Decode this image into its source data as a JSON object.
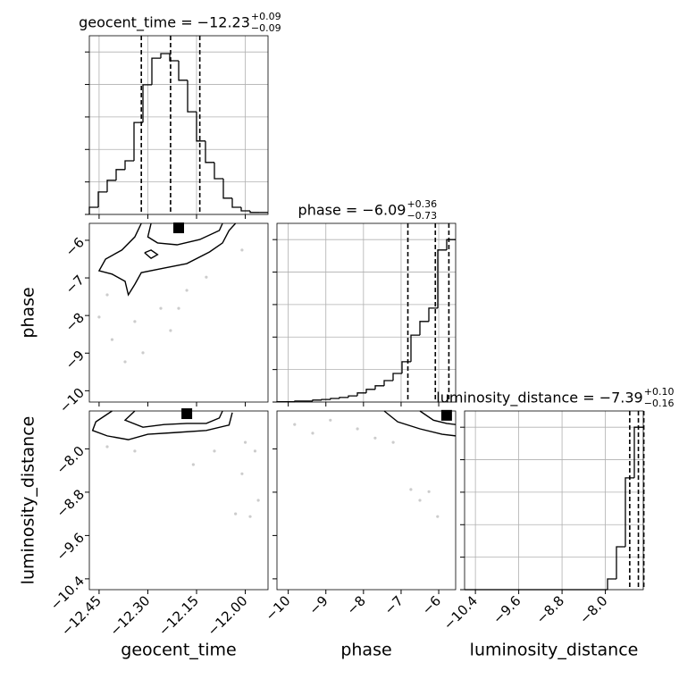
{
  "chart_data": {
    "type": "corner",
    "color": "#000000",
    "grid": true,
    "hist_ylim": [
      0,
      550
    ],
    "hist_yticks": [
      0,
      100,
      200,
      300,
      400,
      500
    ],
    "parameters": [
      {
        "name": "geocent_time",
        "title": "geocent_time = −12.23",
        "upper": "+0.09",
        "lower": "−0.09",
        "lim": [
          -12.48,
          -11.93
        ],
        "ticks": [
          {
            "value": -12.45,
            "label": "−12.45"
          },
          {
            "value": -12.3,
            "label": "−12.30"
          },
          {
            "value": -12.15,
            "label": "−12.15"
          },
          {
            "value": -12.0,
            "label": "−12.00"
          }
        ],
        "quantiles": [
          -12.32,
          -12.23,
          -12.14
        ],
        "bins": [
          -12.48,
          -12.4525,
          -12.425,
          -12.3975,
          -12.37,
          -12.3425,
          -12.315,
          -12.2875,
          -12.26,
          -12.2325,
          -12.205,
          -12.1775,
          -12.15,
          -12.1225,
          -12.095,
          -12.0675,
          -12.04,
          -12.0125,
          -11.985,
          -11.9575,
          -11.93
        ],
        "counts": [
          22,
          69,
          105,
          138,
          165,
          283,
          399,
          481,
          495,
          473,
          413,
          316,
          226,
          160,
          110,
          50,
          22,
          11,
          6,
          6
        ]
      },
      {
        "name": "phase",
        "title": "phase = −6.09",
        "upper": "+0.36",
        "lower": "−0.73",
        "lim": [
          -10.3,
          -5.55
        ],
        "ticks": [
          {
            "value": -10,
            "label": "−10"
          },
          {
            "value": -9,
            "label": "−9"
          },
          {
            "value": -8,
            "label": "−8"
          },
          {
            "value": -7,
            "label": "−7"
          },
          {
            "value": -6,
            "label": "−6"
          }
        ],
        "quantiles": [
          -6.82,
          -6.09,
          -5.73
        ],
        "bins": [
          -10.3,
          -10.0625,
          -9.825,
          -9.5875,
          -9.35,
          -9.1125,
          -8.875,
          -8.6375,
          -8.4,
          -8.1625,
          -7.925,
          -7.6875,
          -7.45,
          -7.2125,
          -6.975,
          -6.7375,
          -6.5,
          -6.2625,
          -6.025,
          -5.7875,
          -5.55
        ],
        "counts": [
          1,
          1,
          3,
          3,
          6,
          8,
          11,
          14,
          19,
          28,
          39,
          50,
          66,
          88,
          124,
          206,
          248,
          289,
          468,
          500
        ]
      },
      {
        "name": "luminosity_distance",
        "title": "luminosity_distance = −7.39",
        "upper": "+0.10",
        "lower": "−0.16",
        "lim": [
          -10.6,
          -7.3
        ],
        "ticks": [
          {
            "value": -10.4,
            "label": "−10.4"
          },
          {
            "value": -9.6,
            "label": "−9.6"
          },
          {
            "value": -8.8,
            "label": "−8.8"
          },
          {
            "value": -8.0,
            "label": "−8.0"
          }
        ],
        "quantiles": [
          -7.55,
          -7.39,
          -7.29
        ],
        "bins": [
          -10.6,
          -10.435,
          -10.27,
          -10.105,
          -9.94,
          -9.775,
          -9.61,
          -9.445,
          -9.28,
          -9.115,
          -8.95,
          -8.785,
          -8.62,
          -8.455,
          -8.29,
          -8.125,
          -7.96,
          -7.795,
          -7.63,
          -7.465,
          -7.3
        ],
        "counts": [
          0,
          0,
          0,
          0,
          0,
          0,
          0,
          0,
          0,
          0,
          0,
          0,
          0,
          0,
          0,
          0,
          33,
          132,
          344,
          500
        ]
      }
    ],
    "pairs": [
      {
        "contours": [
          {
            "x": [
              -12.32,
              -12.34,
              -12.38,
              -12.43,
              -12.45,
              -12.41,
              -12.37,
              -12.36,
              -12.34,
              -12.32,
              -12.25,
              -12.18,
              -12.11,
              -12.07,
              -12.05,
              -12.03
            ],
            "y": [
              -5.55,
              -5.91,
              -6.26,
              -6.5,
              -6.81,
              -6.9,
              -7.09,
              -7.45,
              -7.17,
              -6.86,
              -6.74,
              -6.62,
              -6.31,
              -6.07,
              -5.74,
              -5.55
            ]
          },
          {
            "x": [
              -12.29,
              -12.3,
              -12.27,
              -12.21,
              -12.14,
              -12.08,
              -12.07
            ],
            "y": [
              -5.55,
              -5.91,
              -6.07,
              -6.12,
              -5.98,
              -5.74,
              -5.55
            ]
          },
          {
            "x": [
              -12.31,
              -12.29,
              -12.27,
              -12.29,
              -12.31
            ],
            "y": [
              -6.33,
              -6.26,
              -6.38,
              -6.48,
              -6.33
            ]
          }
        ],
        "points": {
          "x": [
            -12.425,
            -12.34,
            -12.26,
            -12.18,
            -12.41,
            -12.315,
            -12.23,
            -12.37,
            -12.12,
            -12.01,
            -12.45,
            -12.205
          ],
          "y": [
            -7.45,
            -8.16,
            -7.81,
            -7.33,
            -8.64,
            -8.99,
            -8.4,
            -9.23,
            -6.98,
            -6.26,
            -8.04,
            -7.81
          ]
        },
        "peak": {
          "x": -12.205,
          "y": -5.67
        }
      },
      {
        "contours": [
          {
            "x": [
              -12.41,
              -12.46,
              -12.47,
              -12.425,
              -12.36,
              -12.3,
              -12.22,
              -12.12,
              -12.05,
              -12.04
            ],
            "y": [
              -7.3,
              -7.5,
              -7.66,
              -7.76,
              -7.83,
              -7.73,
              -7.7,
              -7.66,
              -7.56,
              -7.33
            ]
          },
          {
            "x": [
              -12.34,
              -12.37,
              -12.315,
              -12.25,
              -12.18,
              -12.12,
              -12.08,
              -12.07
            ],
            "y": [
              -7.3,
              -7.47,
              -7.6,
              -7.55,
              -7.53,
              -7.53,
              -7.43,
              -7.3
            ]
          }
        ],
        "points": {
          "x": [
            -12.01,
            -11.97,
            -11.96,
            -12.03,
            -11.985,
            -12.16,
            -12.34,
            -12.425,
            -12.0,
            -12.095
          ],
          "y": [
            -8.46,
            -8.04,
            -8.95,
            -9.2,
            -9.25,
            -8.29,
            -8.04,
            -7.96,
            -7.88,
            -8.04
          ]
        },
        "peak": {
          "x": -12.18,
          "y": -7.35
        }
      },
      {
        "contours": [
          {
            "x": [
              -7.45,
              -7.09,
              -6.5,
              -5.91,
              -5.55
            ],
            "y": [
              -7.3,
              -7.5,
              -7.63,
              -7.73,
              -7.76
            ]
          },
          {
            "x": [
              -6.5,
              -6.14,
              -5.79,
              -5.55
            ],
            "y": [
              -7.3,
              -7.47,
              -7.53,
              -7.55
            ]
          }
        ],
        "points": {
          "x": [
            -9.83,
            -8.88,
            -8.16,
            -7.69,
            -9.35,
            -6.74,
            -6.5,
            -6.03,
            -6.26,
            -7.21
          ],
          "y": [
            -7.55,
            -7.47,
            -7.63,
            -7.8,
            -7.71,
            -8.75,
            -8.95,
            -9.25,
            -8.79,
            -7.88
          ]
        },
        "peak": {
          "x": -5.79,
          "y": -7.38
        }
      }
    ]
  }
}
